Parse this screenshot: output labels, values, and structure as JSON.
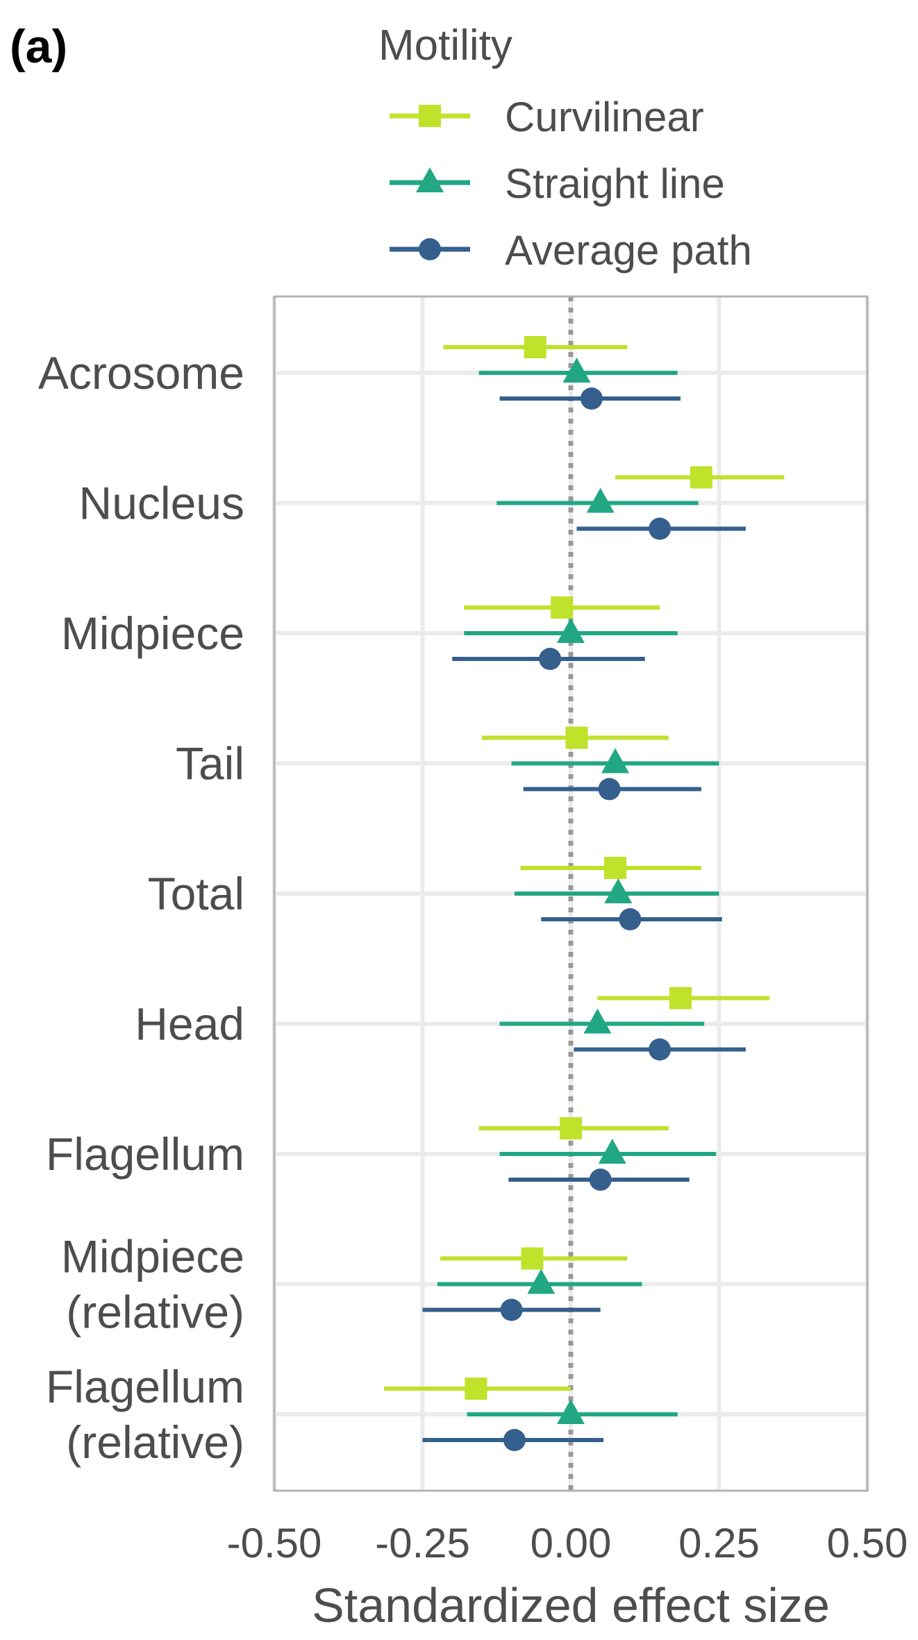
{
  "panel_label": "(a)",
  "colors": {
    "curvilinear": "#bfe22b",
    "straight_line": "#22a784",
    "average_path": "#355f8d",
    "grid": "#ebebeb",
    "frame": "#b3b3b3",
    "zero_line": "#999999",
    "text": "#4d4d4d"
  },
  "chart_data": {
    "type": "forest",
    "xlabel": "Standardized effect size",
    "xlim": [
      -0.5,
      0.5
    ],
    "xticks": [
      "-0.50",
      "-0.25",
      "0.00",
      "0.25",
      "0.50"
    ],
    "xtick_values": [
      -0.5,
      -0.25,
      0,
      0.25,
      0.5
    ],
    "reference_line": 0,
    "grid": true,
    "legend": {
      "title": "Motility",
      "placement": "top",
      "entries": [
        "Curvilinear",
        "Straight line",
        "Average path"
      ]
    },
    "categories": [
      [
        "Acrosome"
      ],
      [
        "Nucleus"
      ],
      [
        "Midpiece"
      ],
      [
        "Tail"
      ],
      [
        "Total"
      ],
      [
        "Head"
      ],
      [
        "Flagellum"
      ],
      [
        "Midpiece",
        "(relative)"
      ],
      [
        "Flagellum",
        "(relative)"
      ]
    ],
    "series": [
      {
        "name": "Curvilinear",
        "marker": "square",
        "estimates": [
          -0.06,
          0.22,
          -0.015,
          0.01,
          0.075,
          0.185,
          0.0,
          -0.065,
          -0.16
        ],
        "lower": [
          -0.215,
          0.075,
          -0.18,
          -0.15,
          -0.085,
          0.045,
          -0.155,
          -0.22,
          -0.315
        ],
        "upper": [
          0.095,
          0.36,
          0.15,
          0.165,
          0.22,
          0.335,
          0.165,
          0.095,
          0.0
        ]
      },
      {
        "name": "Straight line",
        "marker": "triangle",
        "estimates": [
          0.01,
          0.05,
          0.0,
          0.075,
          0.08,
          0.045,
          0.07,
          -0.05,
          0.0
        ],
        "lower": [
          -0.155,
          -0.125,
          -0.18,
          -0.1,
          -0.095,
          -0.12,
          -0.12,
          -0.225,
          -0.175
        ],
        "upper": [
          0.18,
          0.215,
          0.18,
          0.25,
          0.25,
          0.225,
          0.245,
          0.12,
          0.18
        ]
      },
      {
        "name": "Average path",
        "marker": "circle",
        "estimates": [
          0.035,
          0.15,
          -0.035,
          0.065,
          0.1,
          0.15,
          0.05,
          -0.1,
          -0.095
        ],
        "lower": [
          -0.12,
          0.01,
          -0.2,
          -0.08,
          -0.05,
          0.005,
          -0.105,
          -0.25,
          -0.25
        ],
        "upper": [
          0.185,
          0.295,
          0.125,
          0.22,
          0.255,
          0.295,
          0.2,
          0.05,
          0.055
        ]
      }
    ]
  }
}
